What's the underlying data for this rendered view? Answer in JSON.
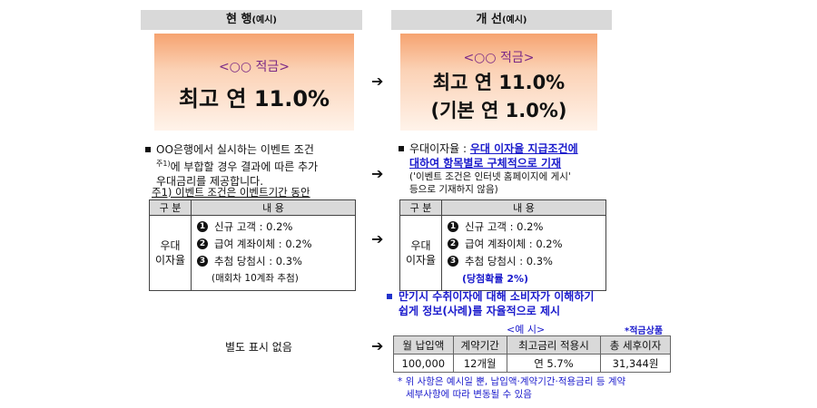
{
  "current": {
    "header_main": "현  행",
    "header_sub": "(예시)",
    "promo_name": "<○○ 적금>",
    "promo_rate": "최고 연 11.0%",
    "bullet_text_line1": "OO은행에서 실시하는 이벤트 조건",
    "bullet_footnote_mark": "주1)",
    "bullet_text_line2": "에 부합할 경우 결과에 따른 추가",
    "bullet_text_line3": "우대금리를 제공합니다.",
    "footnote": "주1) 이벤트 조건은 이벤트기간 동안",
    "table": {
      "col1": "구 분",
      "col2": "내 용",
      "row_label": "우대 이자율",
      "items": [
        {
          "num": "1",
          "text": "신규 고객 : 0.2%"
        },
        {
          "num": "2",
          "text": "급여 계좌이체 : 0.2%"
        },
        {
          "num": "3",
          "text": "추첨 당첨시 : 0.3%"
        }
      ],
      "note": "(매회차 10계좌 추첨)"
    },
    "no_display": "별도 표시 없음"
  },
  "improved": {
    "header_main": "개  선",
    "header_sub": "(예시)",
    "promo_name": "<○○ 적금>",
    "promo_rate": "최고 연 11.0%",
    "promo_base": "(기본 연 1.0%)",
    "bullet_label": "우대이자율 : ",
    "bullet_blue_line1": "우대 이자율 지급조건에",
    "bullet_blue_line2": "대하여 항목별로 구체적으로 기재",
    "bullet_small_line1": "('이벤트 조건은 인터넷 홈페이지에 게시'",
    "bullet_small_line2": "등으로 기재하지 않음)",
    "table": {
      "col1": "구 분",
      "col2": "내 용",
      "row_label": "우대 이자율",
      "items": [
        {
          "num": "1",
          "text": "신규 고객 : 0.2%"
        },
        {
          "num": "2",
          "text": "급여 계좌이체 : 0.2%"
        },
        {
          "num": "3",
          "text": "추첨 당첨시 : 0.3%"
        }
      ],
      "note": "(당첨확률 2%)"
    },
    "bullet2_line1": "만기시 수취이자에 대해 소비자가 이해하기",
    "bullet2_line2": "쉽게 정보(사례)를 자율적으로 제시",
    "example_title": "<예  시>",
    "example_tag": "*적금상품",
    "example_headers": [
      "월 납입액",
      "계약기간",
      "최고금리 적용시",
      "총 세후이자"
    ],
    "example_values": [
      "100,000",
      "12개월",
      "연 5.7%",
      "31,344원"
    ],
    "disclaimer_line1": "* 위 사항은 예시일 뿐, 납입액·계약기간·적용금리 등 계약",
    "disclaimer_line2": "세부사항에 따라 변동될 수 있음"
  },
  "arrow": "➔",
  "colors": {
    "blue_text": "#1a1acc",
    "orange": "#f6a370",
    "header_gray": "#d9d9d9"
  }
}
